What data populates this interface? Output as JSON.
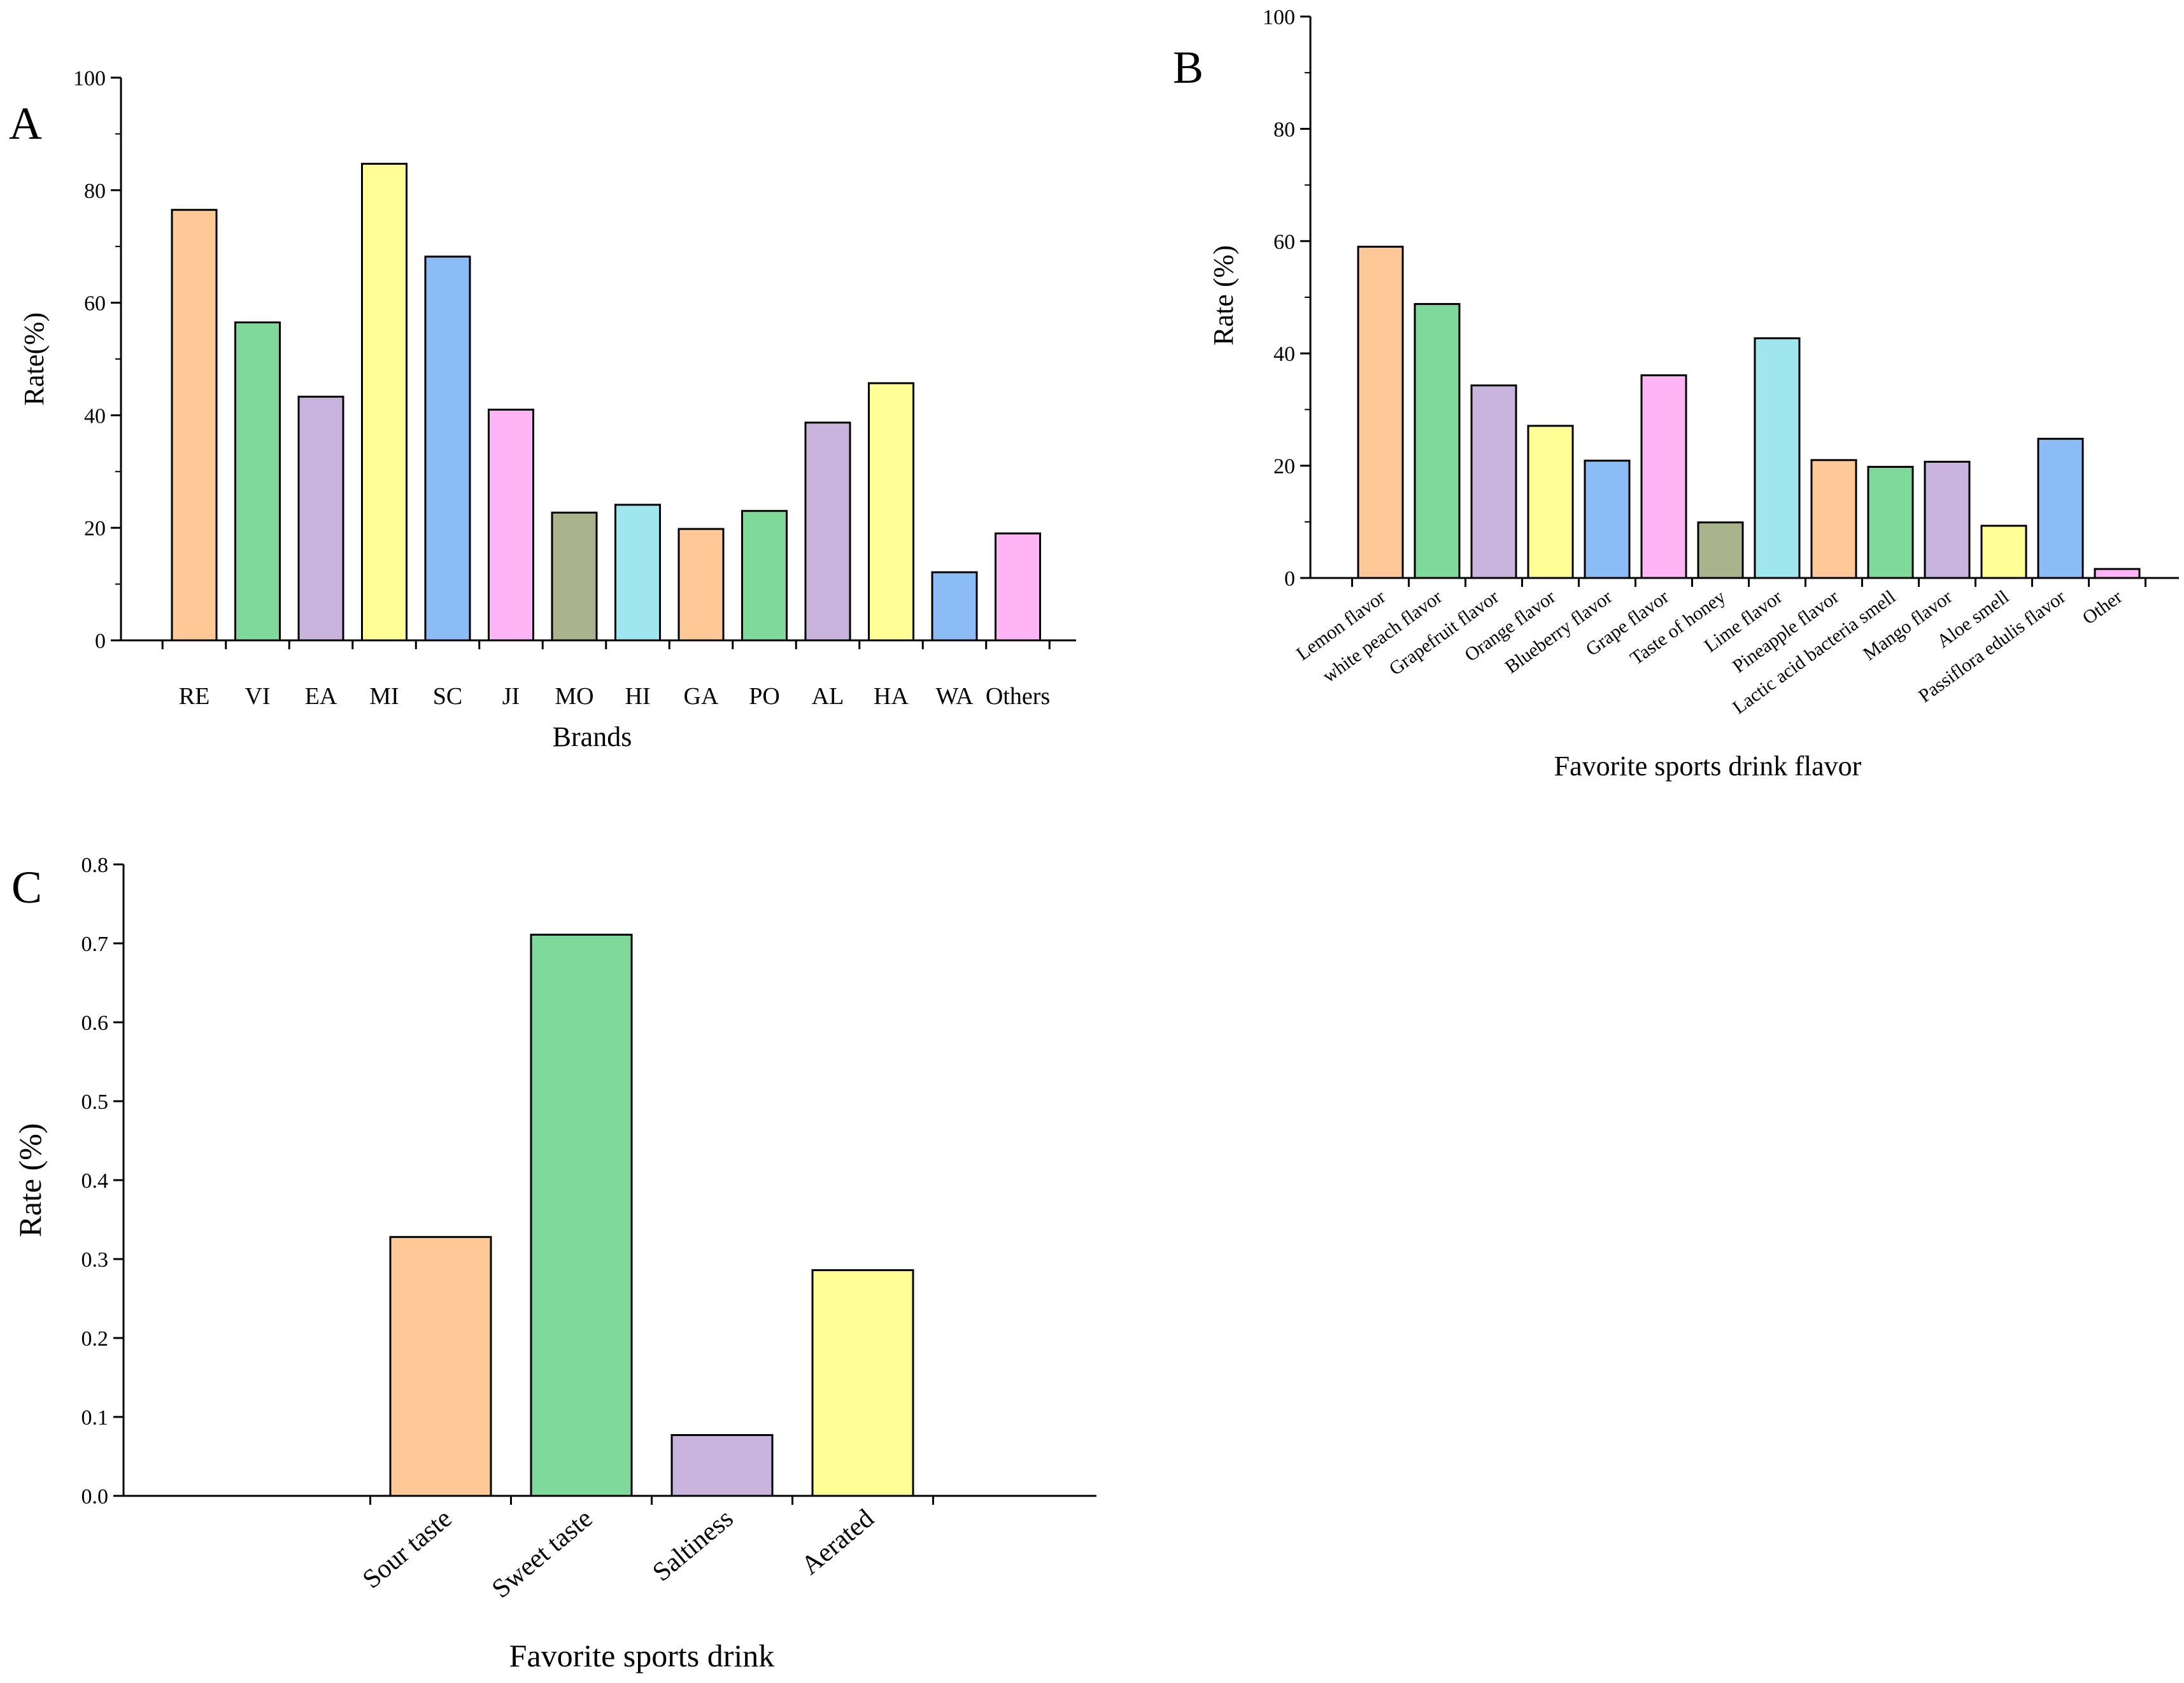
{
  "chart_data": [
    {
      "panel": "A",
      "type": "bar",
      "title": "",
      "xlabel": "Brands",
      "ylabel": "Rate(%)",
      "ylim": [
        0,
        100
      ],
      "yticks": [
        0,
        20,
        40,
        60,
        80,
        100
      ],
      "tick_labels": [
        "0",
        "20",
        "40",
        "60",
        "80",
        "100"
      ],
      "grid": false,
      "categories": [
        "RE",
        "VI",
        "EA",
        "MI",
        "SC",
        "JI",
        "MO",
        "HI",
        "GA",
        "PO",
        "AL",
        "HA",
        "WA",
        "Others"
      ],
      "values": [
        76.5,
        56.5,
        43.3,
        84.7,
        68.2,
        41.0,
        22.7,
        24.1,
        19.8,
        23.0,
        38.7,
        45.7,
        12.1,
        19.0
      ],
      "colors": [
        "#FFC896",
        "#7ED99A",
        "#C8B4DC",
        "#FFFF96",
        "#8CBCF5",
        "#FFB4F5",
        "#AAB48C",
        "#A0E6EE",
        "#FFC896",
        "#7ED99A",
        "#C8B4DC",
        "#FFFF96",
        "#8CBCF5",
        "#FFB4F5"
      ]
    },
    {
      "panel": "B",
      "type": "bar",
      "title": "",
      "xlabel": "Favorite sports drink flavor",
      "ylabel": "Rate (%)",
      "ylim": [
        0,
        100
      ],
      "yticks": [
        0,
        20,
        40,
        60,
        80,
        100
      ],
      "tick_labels": [
        "0",
        "20",
        "40",
        "60",
        "80",
        "100"
      ],
      "grid": false,
      "categories": [
        "Lemon flavor",
        "white peach flavor",
        "Grapefruit flavor",
        "Orange flavor",
        "Blueberry flavor",
        "Grape flavor",
        "Taste of honey",
        "Lime flavor",
        "Pineapple flavor",
        "Lactic acid bacteria smell",
        "Mango flavor",
        "Aloe smell",
        "Passiflora edulis flavor",
        "Other"
      ],
      "values": [
        59.0,
        48.8,
        34.3,
        27.1,
        20.9,
        36.1,
        9.9,
        42.7,
        21.0,
        19.8,
        20.7,
        9.3,
        24.8,
        1.6
      ],
      "colors": [
        "#FFC896",
        "#7ED99A",
        "#C8B4DC",
        "#FFFF96",
        "#8CBCF5",
        "#FFB4F5",
        "#AAB48C",
        "#A0E6EE",
        "#FFC896",
        "#7ED99A",
        "#C8B4DC",
        "#FFFF96",
        "#8CBCF5",
        "#FFB4F5"
      ]
    },
    {
      "panel": "C",
      "type": "bar",
      "title": "",
      "xlabel": "Favorite sports drink",
      "ylabel": "Rate (%)",
      "ylim": [
        0,
        0.8
      ],
      "yticks": [
        0,
        0.1,
        0.2,
        0.3,
        0.4,
        0.5,
        0.6,
        0.7,
        0.8
      ],
      "tick_labels": [
        "0.0",
        "0.1",
        "0.2",
        "0.3",
        "0.4",
        "0.5",
        "0.6",
        "0.7",
        "0.8"
      ],
      "grid": false,
      "categories": [
        "Sour taste",
        "Sweet taste",
        "Saltiness",
        "Aerated"
      ],
      "values": [
        0.328,
        0.711,
        0.077,
        0.286
      ],
      "colors": [
        "#FFC896",
        "#7ED99A",
        "#C8B4DC",
        "#FFFF96"
      ]
    }
  ]
}
